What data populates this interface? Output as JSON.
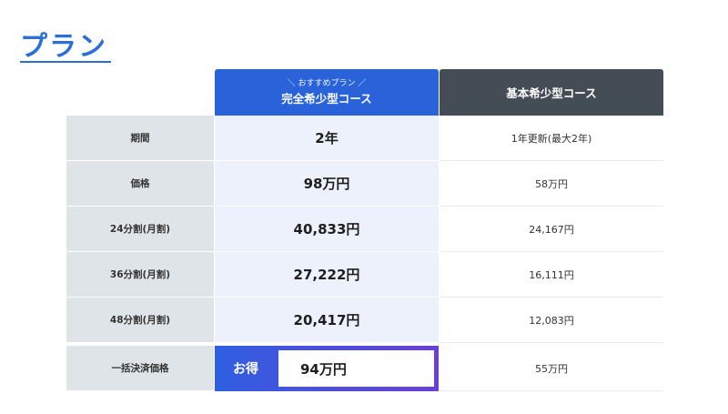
{
  "page": {
    "title": "プラン"
  },
  "plans": {
    "recommended": {
      "badge": "＼ おすすめプラン ／",
      "name": "完全希少型コース"
    },
    "basic": {
      "name": "基本希少型コース"
    }
  },
  "rows": [
    {
      "label": "期間",
      "recommended": "2年",
      "basic": "1年更新(最大2年)"
    },
    {
      "label": "価格",
      "recommended": "98万円",
      "basic": "58万円"
    },
    {
      "label": "24分割(月割)",
      "recommended": "40,833円",
      "basic": "24,167円"
    },
    {
      "label": "36分割(月割)",
      "recommended": "27,222円",
      "basic": "16,111円"
    },
    {
      "label": "48分割(月割)",
      "recommended": "20,417円",
      "basic": "12,083円"
    },
    {
      "label": "一括決済価格",
      "recommended_tag": "お得",
      "recommended": "94万円",
      "basic": "55万円"
    }
  ],
  "colors": {
    "title": "#2a6fd6",
    "recommended_header": "#2a63d9",
    "basic_header": "#444c55",
    "label_bg": "#dfe4e8",
    "recommended_bg": "#ecf1fb"
  }
}
